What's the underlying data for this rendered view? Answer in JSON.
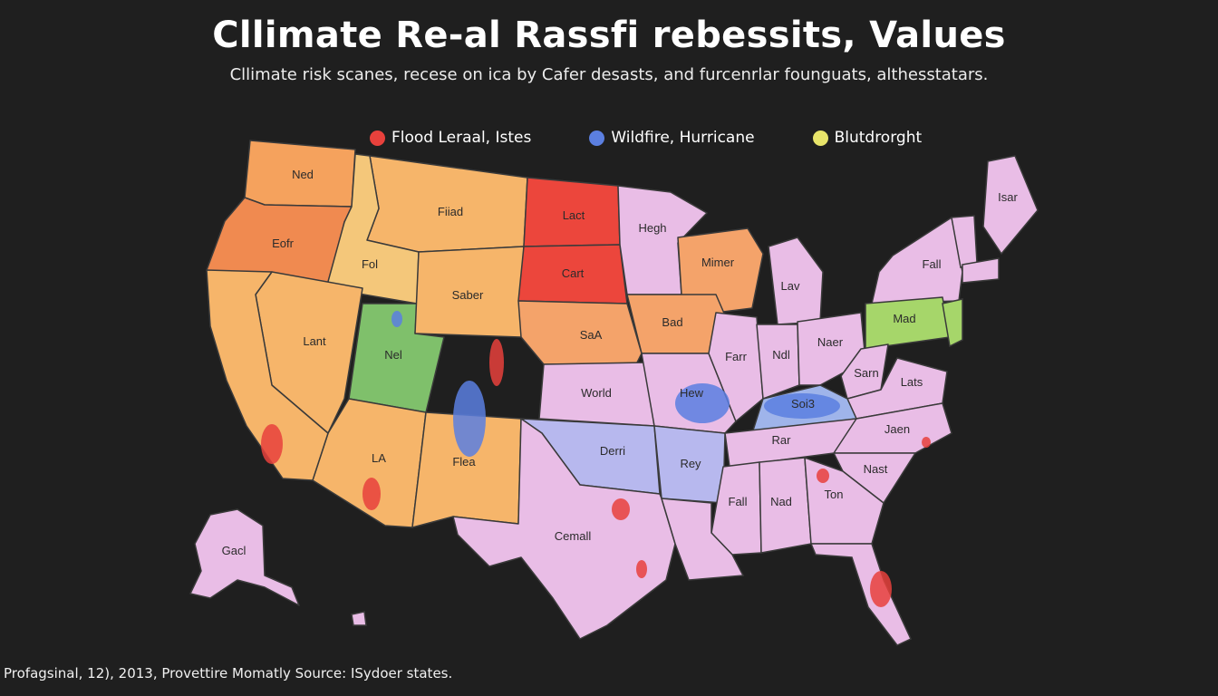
{
  "title": "Cllimate Re-al Rassfi rebessits, Values",
  "subtitle": "Cllimate risk scanes, recese on ica by Cafer desasts, and furcenrlar founguats, althesstatars.",
  "legend": [
    {
      "label": "Flood Leraal, Istes",
      "color": "#e8413c"
    },
    {
      "label": "Wildfire, Hurricane",
      "color": "#5b7fe0"
    },
    {
      "label": "Blutdrorght",
      "color": "#e8e46a"
    }
  ],
  "regions": [
    {
      "label": "Ned",
      "color": "#f5a25d"
    },
    {
      "label": "Eofr",
      "color": "#f08a50"
    },
    {
      "label": "Fiiad",
      "color": "#f6b56a"
    },
    {
      "label": "Fol",
      "color": "#f4c77a"
    },
    {
      "label": "Lant",
      "color": "#f6b56a"
    },
    {
      "label": "Nel",
      "color": "#7fc06b"
    },
    {
      "label": "Saber",
      "color": "#f6b56a"
    },
    {
      "label": "Lact",
      "color": "#ec463c"
    },
    {
      "label": "Cart",
      "color": "#ec463c"
    },
    {
      "label": "Hegh",
      "color": "#e9bde6"
    },
    {
      "label": "Mimer",
      "color": "#f4a36a"
    },
    {
      "label": "Bad",
      "color": "#f4a36a"
    },
    {
      "label": "SaA",
      "color": "#f4a36a"
    },
    {
      "label": "Lav",
      "color": "#e9bde6"
    },
    {
      "label": "Isar",
      "color": "#e9bde6"
    },
    {
      "label": "Fall",
      "color": "#e9bde6"
    },
    {
      "label": "Mad",
      "color": "#a6d66a"
    },
    {
      "label": "World",
      "color": "#e9bde6"
    },
    {
      "label": "Hew",
      "color": "#e9bde6"
    },
    {
      "label": "Farr",
      "color": "#e9bde6"
    },
    {
      "label": "Ndl",
      "color": "#e9bde6"
    },
    {
      "label": "Naer",
      "color": "#e9bde6"
    },
    {
      "label": "Sarn",
      "color": "#e9bde6"
    },
    {
      "label": "Lats",
      "color": "#e9bde6"
    },
    {
      "label": "Soi3",
      "color": "#9fb4ea"
    },
    {
      "label": "Jaen",
      "color": "#e9bde6"
    },
    {
      "label": "LA",
      "color": "#f6b56a"
    },
    {
      "label": "Flea",
      "color": "#f6b56a"
    },
    {
      "label": "Derri",
      "color": "#b7b8ee"
    },
    {
      "label": "Rey",
      "color": "#b7b8ee"
    },
    {
      "label": "Rar",
      "color": "#e9bde6"
    },
    {
      "label": "Nast",
      "color": "#e9bde6"
    },
    {
      "label": "Fall",
      "color": "#e9bde6"
    },
    {
      "label": "Nad",
      "color": "#e9bde6"
    },
    {
      "label": "Ton",
      "color": "#e9bde6"
    },
    {
      "label": "Cemall",
      "color": "#e9bde6"
    },
    {
      "label": "Gacl",
      "color": "#e9bde6"
    }
  ],
  "footer": "Profagsinal, 12), 2013, Provettire Momatly Source: ISydoer states."
}
